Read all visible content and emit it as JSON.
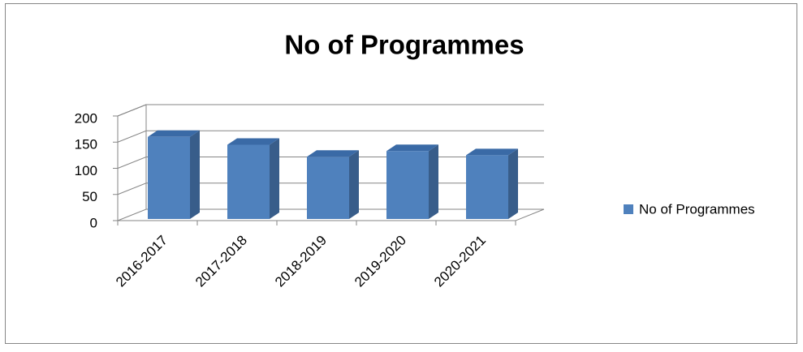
{
  "chart_data": {
    "type": "bar3d",
    "title": "No of Programmes",
    "categories": [
      "2016-2017",
      "2017-2018",
      "2018-2019",
      "2019-2020",
      "2020-2021"
    ],
    "series": [
      {
        "name": "No of Programmes",
        "color": "#4f81bd",
        "values": [
          160,
          145,
          122,
          133,
          125
        ]
      }
    ],
    "ylim": [
      0,
      200
    ],
    "yticks": [
      0,
      50,
      100,
      150,
      200
    ],
    "grid": true,
    "legend": "right"
  }
}
